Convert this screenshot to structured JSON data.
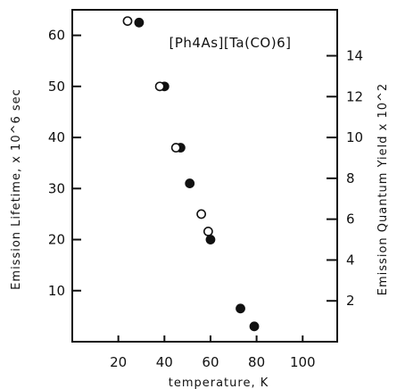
{
  "chart_data": {
    "type": "scatter",
    "title": "",
    "annotation": "[Ph4As][Ta(CO)6]",
    "xlabel": "temperature, K",
    "ylabel": "Emission Lifetime, x 10^6 sec",
    "ylabel_right": "Emission Quantum Yield x 10^2",
    "xlim": [
      0,
      115
    ],
    "ylim": [
      0,
      65
    ],
    "ylim_right": [
      0,
      16.25
    ],
    "x_ticks": [
      20,
      40,
      60,
      80,
      100
    ],
    "x_tick_labels": [
      "20",
      "40",
      "60",
      "80",
      "100"
    ],
    "y_ticks": [
      10,
      20,
      30,
      40,
      50,
      60
    ],
    "y_tick_labels": [
      "10",
      "20",
      "30",
      "40",
      "50",
      "60"
    ],
    "y2_ticks": [
      2,
      4,
      6,
      8,
      10,
      12,
      14
    ],
    "y2_tick_labels": [
      "2",
      "4",
      "6",
      "8",
      "10",
      "12",
      "14"
    ],
    "grid": false,
    "series": [
      {
        "marker": "filled-circle",
        "axis": "left",
        "points": [
          [
            29,
            62.5
          ],
          [
            40,
            50
          ],
          [
            47,
            38
          ],
          [
            51,
            31
          ],
          [
            60,
            20
          ],
          [
            73,
            6.5
          ],
          [
            79,
            3
          ]
        ]
      },
      {
        "marker": "open-circle",
        "axis": "right",
        "points": [
          [
            24,
            15.7
          ],
          [
            38,
            12.5
          ],
          [
            45,
            9.5
          ],
          [
            56,
            6.25
          ],
          [
            59,
            5.4
          ]
        ]
      }
    ]
  }
}
